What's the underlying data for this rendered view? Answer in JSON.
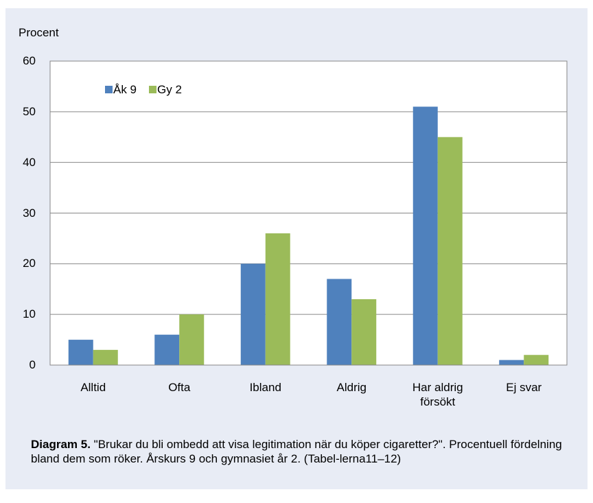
{
  "chart_data": {
    "type": "bar",
    "y_label": "Procent",
    "categories": [
      "Alltid",
      "Ofta",
      "Ibland",
      "Aldrig",
      "Har aldrig försökt",
      "Ej svar"
    ],
    "series": [
      {
        "name": "Åk 9",
        "color": "#4f81bd",
        "values": [
          5,
          6,
          20,
          17,
          51,
          1
        ]
      },
      {
        "name": "Gy 2",
        "color": "#9bbb59",
        "values": [
          3,
          10,
          26,
          13,
          45,
          2
        ]
      }
    ],
    "ylim": [
      0,
      60
    ],
    "yticks": [
      0,
      10,
      20,
      30,
      40,
      50,
      60
    ],
    "grid": true,
    "legend": "top-left",
    "caption_label": "Diagram 5.",
    "caption": "\"Brukar du bli ombedd att visa legitimation när du köper cigaretter?\". Procentuell fördelning bland dem som röker. Årskurs 9 och gymnasiet år 2. (Tabel-lerna11–12)"
  }
}
